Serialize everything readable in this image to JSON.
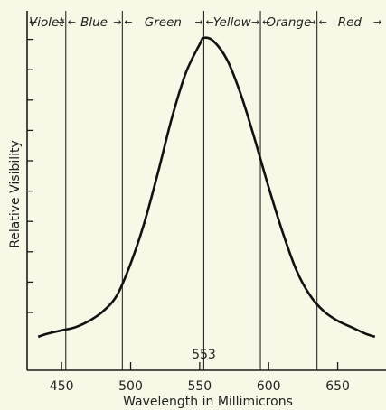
{
  "chart_data": {
    "type": "line",
    "xlabel": "Wavelength in Millimicrons",
    "ylabel": "Relative Visibility",
    "xlim": [
      425,
      685
    ],
    "ylim": [
      0,
      1.0
    ],
    "x_ticks": [
      450,
      500,
      550,
      600,
      650
    ],
    "peak_label": "553",
    "bands": [
      {
        "label": "Violet",
        "from": 425,
        "to": 453
      },
      {
        "label": "Blue",
        "from": 453,
        "to": 494
      },
      {
        "label": "Green",
        "from": 494,
        "to": 553
      },
      {
        "label": "Yellow",
        "from": 553,
        "to": 594
      },
      {
        "label": "Orange",
        "from": 594,
        "to": 635
      },
      {
        "label": "Red",
        "from": 635,
        "to": 685
      }
    ],
    "vertical_lines": [
      453,
      494,
      553,
      594,
      635
    ],
    "series": [
      {
        "x": [
          433,
          440,
          450,
          460,
          470,
          480,
          490,
          500,
          510,
          520,
          530,
          540,
          550,
          553,
          560,
          570,
          580,
          590,
          600,
          610,
          620,
          630,
          640,
          650,
          660,
          670,
          677
        ],
        "values": [
          0.06,
          0.07,
          0.08,
          0.09,
          0.11,
          0.14,
          0.19,
          0.29,
          0.42,
          0.58,
          0.75,
          0.89,
          0.98,
          1.0,
          0.99,
          0.93,
          0.82,
          0.68,
          0.53,
          0.39,
          0.27,
          0.19,
          0.14,
          0.11,
          0.09,
          0.07,
          0.06
        ]
      }
    ],
    "y_tick_count": 10,
    "grid": false,
    "colors": {
      "curve": "#111111",
      "background": "#f7f8e6"
    }
  }
}
